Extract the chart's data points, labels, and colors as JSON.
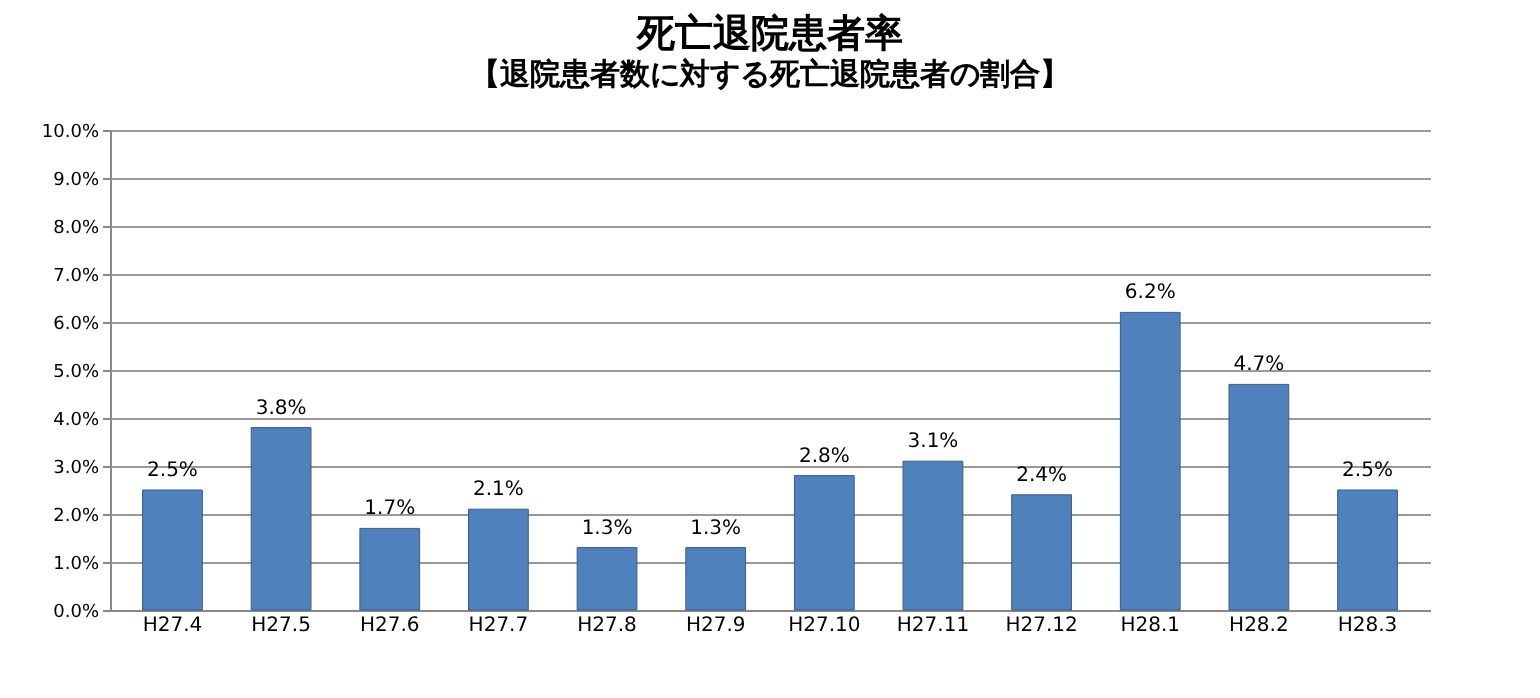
{
  "chart_data": {
    "type": "bar",
    "title": "死亡退院患者率",
    "subtitle": "【退院患者数に対する死亡退院患者の割合】",
    "categories": [
      "H27.4",
      "H27.5",
      "H27.6",
      "H27.7",
      "H27.8",
      "H27.9",
      "H27.10",
      "H27.11",
      "H27.12",
      "H28.1",
      "H28.2",
      "H28.3"
    ],
    "values": [
      2.5,
      3.8,
      1.7,
      2.1,
      1.3,
      1.3,
      2.8,
      3.1,
      2.4,
      6.2,
      4.7,
      2.5
    ],
    "value_labels": [
      "2.5%",
      "3.8%",
      "1.7%",
      "2.1%",
      "1.3%",
      "1.3%",
      "2.8%",
      "3.1%",
      "2.4%",
      "6.2%",
      "4.7%",
      "2.5%"
    ],
    "color": "#4f81bd",
    "ylim": [
      0,
      10
    ],
    "yticks": [
      {
        "value": 0,
        "label": "0.0%"
      },
      {
        "value": 1,
        "label": "1.0%"
      },
      {
        "value": 2,
        "label": "2.0%"
      },
      {
        "value": 3,
        "label": "3.0%"
      },
      {
        "value": 4,
        "label": "4.0%"
      },
      {
        "value": 5,
        "label": "5.0%"
      },
      {
        "value": 6,
        "label": "6.0%"
      },
      {
        "value": 7,
        "label": "7.0%"
      },
      {
        "value": 8,
        "label": "8.0%"
      },
      {
        "value": 9,
        "label": "9.0%"
      },
      {
        "value": 10,
        "label": "10.0%"
      }
    ],
    "grid": "y"
  }
}
